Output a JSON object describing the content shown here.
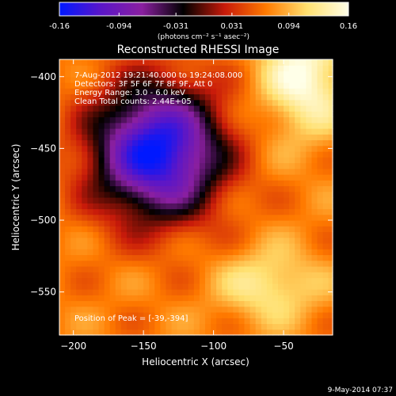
{
  "chart_data": {
    "type": "heatmap",
    "title": "Reconstructed RHESSI Image",
    "xlabel": "Heliocentric X (arcsec)",
    "ylabel": "Heliocentric Y (arcsec)",
    "xlim": [
      -210,
      -15
    ],
    "ylim": [
      -580,
      -388
    ],
    "x_ticks": [
      -200,
      -150,
      -100,
      -50
    ],
    "y_ticks": [
      -400,
      -450,
      -500,
      -550
    ],
    "colorbar": {
      "min": -0.16,
      "max": 0.16,
      "tick_values": [
        -0.16,
        -0.094,
        -0.031,
        0.031,
        0.094,
        0.16
      ],
      "tick_labels": [
        "-0.16",
        "-0.094",
        "-0.031",
        "0.031",
        "0.094",
        "0.16"
      ],
      "unit_label": "(photons cm⁻² s⁻¹ asec⁻²)",
      "colors": [
        "#0018ff",
        "#5a16c8",
        "#8a1fa0",
        "#000000",
        "#c81a0a",
        "#ff7a00",
        "#ffe070",
        "#ffffe8"
      ]
    },
    "annotations": {
      "time_range": "7-Aug-2012 19:21:40.000 to 19:24:08.000",
      "detectors": "Detectors: 3F 5F 6F 7F 8F 9F, Att 0",
      "energy": "Energy Range: 3.0 - 6.0 keV",
      "method": "Clean    Total counts: 2.44E+05",
      "peak": "Position of Peak = [-39,-394]"
    },
    "features": [
      {
        "kind": "negative-minimum",
        "center": [
          -140,
          -452
        ],
        "radius": [
          45,
          45
        ],
        "value": -0.16
      },
      {
        "kind": "bright-region",
        "center": [
          -35,
          -400
        ],
        "radius": [
          30,
          40
        ],
        "value": 0.16
      },
      {
        "kind": "bright-region",
        "center": [
          -60,
          -545
        ],
        "radius": [
          35,
          25
        ],
        "value": 0.13
      }
    ]
  },
  "footer": {
    "date": "9-May-2014 07:37"
  }
}
